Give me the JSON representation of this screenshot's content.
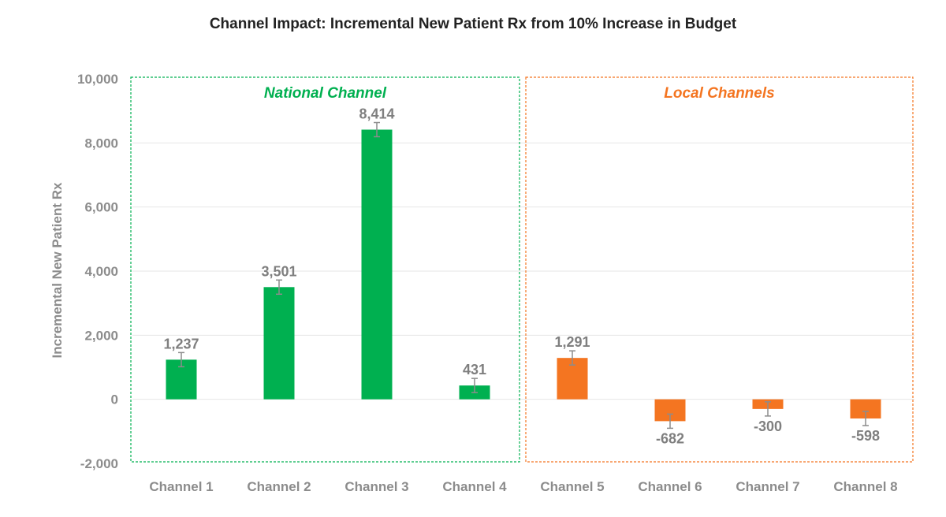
{
  "chart_data": {
    "type": "bar",
    "title": "Channel Impact: Incremental New Patient Rx from 10% Increase in Budget",
    "xlabel": "",
    "ylabel": "Incremental New Patient Rx",
    "ylim": [
      -2000,
      10000
    ],
    "yticks": [
      -2000,
      0,
      2000,
      4000,
      6000,
      8000,
      10000
    ],
    "ytick_labels": [
      "-2,000",
      "0",
      "2,000",
      "4,000",
      "6,000",
      "8,000",
      "10,000"
    ],
    "grid": true,
    "categories": [
      "Channel 1",
      "Channel 2",
      "Channel 3",
      "Channel 4",
      "Channel 5",
      "Channel 6",
      "Channel 7",
      "Channel 8"
    ],
    "values": [
      1237,
      3501,
      8414,
      431,
      1291,
      -682,
      -300,
      -598
    ],
    "data_labels": [
      "1,237",
      "3,501",
      "8,414",
      "431",
      "1,291",
      "-682",
      "-300",
      "-598"
    ],
    "error_bars": true,
    "groups": [
      {
        "name": "National Channel",
        "categories": [
          "Channel 1",
          "Channel 2",
          "Channel 3",
          "Channel 4"
        ],
        "color": "#00b050"
      },
      {
        "name": "Local Channels",
        "categories": [
          "Channel 5",
          "Channel 6",
          "Channel 7",
          "Channel 8"
        ],
        "color": "#f47521"
      }
    ],
    "bar_colors": [
      "#00b050",
      "#00b050",
      "#00b050",
      "#00b050",
      "#f47521",
      "#f47521",
      "#f47521",
      "#f47521"
    ]
  }
}
